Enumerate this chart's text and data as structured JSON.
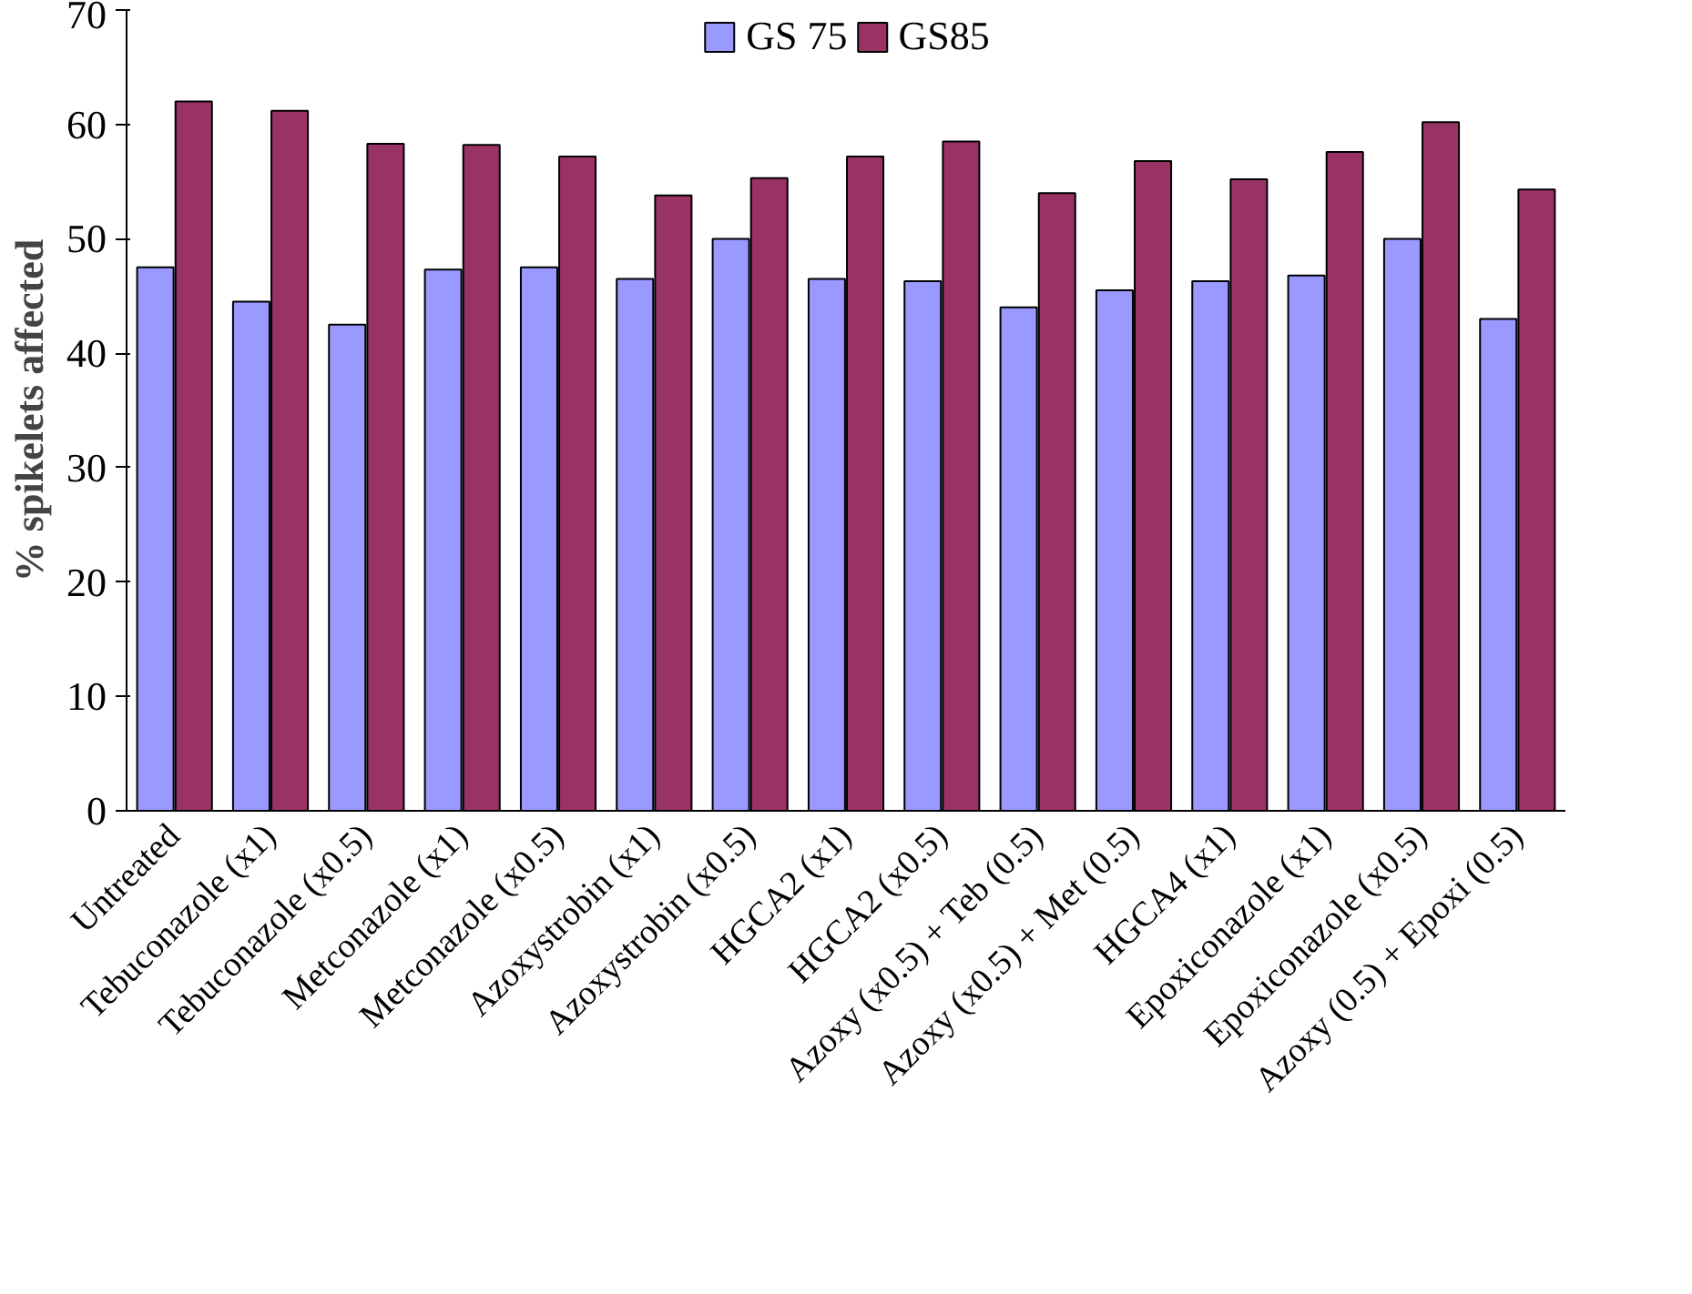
{
  "chart_data": {
    "type": "bar",
    "ylabel": "% spikelets affected",
    "categories": [
      "Untreated",
      "Tebuconazole (x1)",
      "Tebuconazole (x0.5)",
      "Metconazole (x1)",
      "Metconazole (x0.5)",
      "Azoxystrobin (x1)",
      "Azoxystrobin (x0.5)",
      "HGCA2 (x1)",
      "HGCA2 (x0.5)",
      "Azoxy (x0.5) + Teb (0.5)",
      "Azoxy (x0.5) + Met (0.5)",
      "HGCA4 (x1)",
      "Epoxiconazole (x1)",
      "Epoxiconazole (x0.5)",
      "Azoxy (0.5) + Epoxi (0.5)"
    ],
    "series": [
      {
        "name": "GS 75",
        "color": "#9999ff",
        "values": [
          47.5,
          44.5,
          42.5,
          47.3,
          47.5,
          46.5,
          50,
          46.5,
          46.3,
          44,
          45.5,
          46.3,
          46.8,
          50,
          43
        ]
      },
      {
        "name": "GS85",
        "color": "#993366",
        "values": [
          62,
          61.2,
          58.3,
          58.2,
          57.2,
          53.8,
          55.3,
          57.2,
          58.5,
          54,
          56.8,
          55.2,
          57.6,
          60.2,
          54.3
        ]
      }
    ],
    "ylim": [
      0,
      70
    ],
    "yticks": [
      0,
      10,
      20,
      30,
      40,
      50,
      60,
      70
    ],
    "grid": false,
    "legend": "top"
  }
}
